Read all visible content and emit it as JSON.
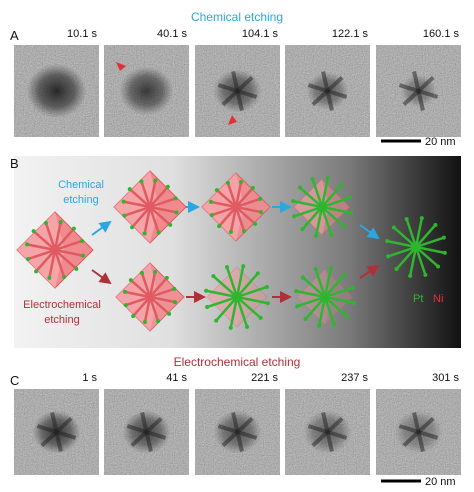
{
  "panel_a": {
    "label": "A",
    "title": "Chemical etching",
    "frames": [
      "10.1 s",
      "40.1 s",
      "104.1 s",
      "122.1 s",
      "160.1 s"
    ],
    "scale_bar": "20 nm"
  },
  "panel_b": {
    "label": "B",
    "chemical_label": [
      "Chemical",
      "etching"
    ],
    "electrochemical_label": [
      "Electrochemical",
      "etching"
    ],
    "legend": [
      "Pt",
      "Ni"
    ]
  },
  "panel_c": {
    "label": "C",
    "title": "Electrochemical etching",
    "frames": [
      "1 s",
      "41 s",
      "221 s",
      "237 s",
      "301 s"
    ],
    "scale_bar": "20 nm"
  }
}
